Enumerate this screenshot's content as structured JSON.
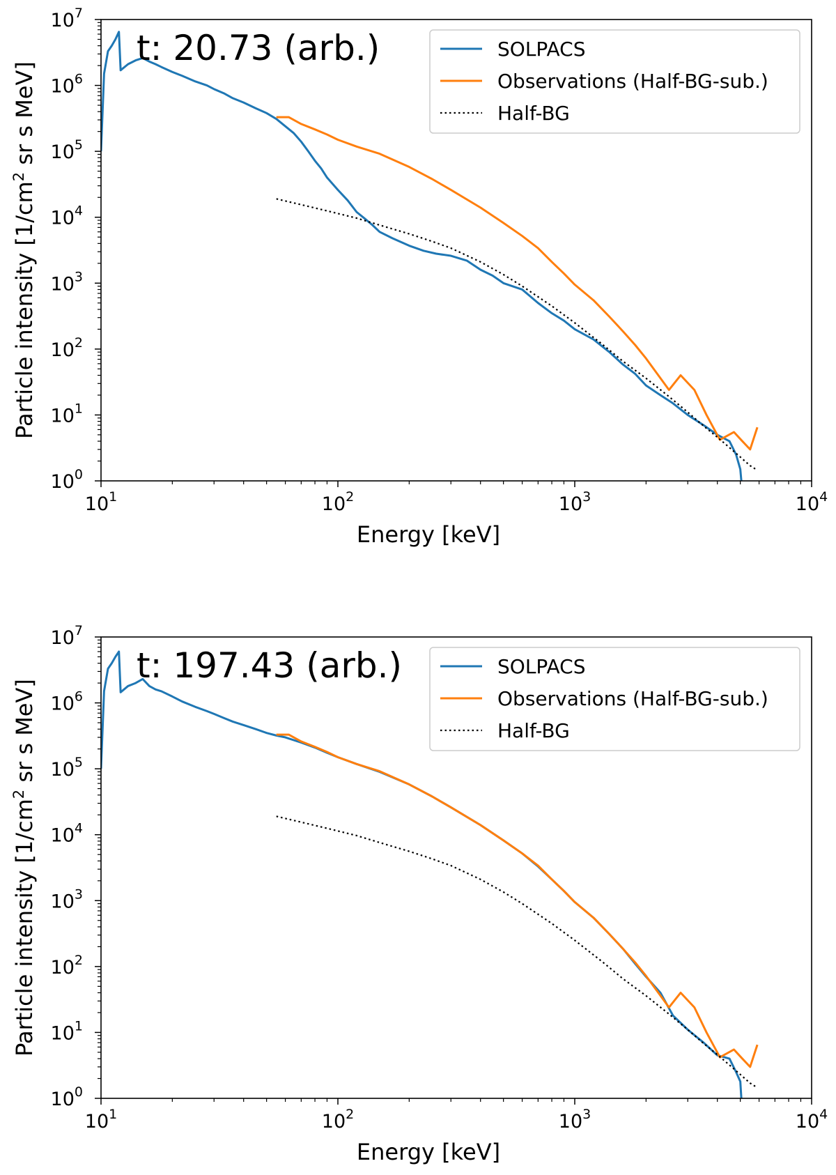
{
  "chart_data": [
    {
      "type": "line",
      "annotation": "t: 20.73 (arb.)",
      "xlabel": "Energy [keV]",
      "ylabel_pre": "Particle intensity [1/cm",
      "ylabel_sup": "2",
      "ylabel_post": " sr s MeV]",
      "xscale": "log",
      "yscale": "log",
      "xlim": [
        10,
        10000
      ],
      "ylim": [
        1,
        10000000
      ],
      "x_ticks": [
        {
          "base": "10",
          "exp": "1"
        },
        {
          "base": "10",
          "exp": "2"
        },
        {
          "base": "10",
          "exp": "3"
        },
        {
          "base": "10",
          "exp": "4"
        }
      ],
      "y_ticks": [
        {
          "base": "10",
          "exp": "0"
        },
        {
          "base": "10",
          "exp": "1"
        },
        {
          "base": "10",
          "exp": "2"
        },
        {
          "base": "10",
          "exp": "3"
        },
        {
          "base": "10",
          "exp": "4"
        },
        {
          "base": "10",
          "exp": "5"
        },
        {
          "base": "10",
          "exp": "6"
        },
        {
          "base": "10",
          "exp": "7"
        }
      ],
      "legend_position": "upper-right",
      "series": [
        {
          "name": "SOLPACS",
          "color": "#1f77b4",
          "style": "solid",
          "x": [
            10,
            10.3,
            10.7,
            11.1,
            11.5,
            11.9,
            12.1,
            13,
            14,
            15,
            16,
            17,
            18,
            20,
            22,
            25,
            28,
            30,
            33,
            36,
            40,
            45,
            50,
            55,
            60,
            65,
            70,
            75,
            80,
            85,
            90,
            100,
            110,
            120,
            130,
            140,
            150,
            170,
            200,
            230,
            260,
            300,
            350,
            400,
            450,
            500,
            600,
            700,
            800,
            900,
            1000,
            1200,
            1400,
            1600,
            1800,
            2000,
            2300,
            2600,
            3000,
            3500,
            4000,
            4500,
            4800,
            5000,
            5050
          ],
          "y": [
            100000,
            1500000,
            3300000,
            4000000,
            5000000,
            6500000,
            1700000,
            2100000,
            2400000,
            2600000,
            2300000,
            2100000,
            1900000,
            1600000,
            1400000,
            1150000,
            1000000,
            880000,
            760000,
            640000,
            550000,
            450000,
            380000,
            310000,
            240000,
            190000,
            140000,
            100000,
            72000,
            55000,
            40000,
            26000,
            18000,
            12000,
            9500,
            7600,
            6000,
            4800,
            3700,
            3100,
            2800,
            2600,
            2200,
            1600,
            1300,
            1000,
            800,
            500,
            350,
            270,
            200,
            140,
            90,
            58,
            42,
            28,
            20,
            15,
            10,
            7,
            5,
            4,
            2.5,
            1.5,
            1
          ]
        },
        {
          "name": "Observations (Half-BG-sub.)",
          "color": "#ff7f0e",
          "style": "solid",
          "x": [
            55,
            62,
            70,
            80,
            90,
            100,
            120,
            150,
            200,
            250,
            300,
            400,
            500,
            600,
            700,
            800,
            900,
            1000,
            1200,
            1400,
            1600,
            1800,
            2000,
            2200,
            2500,
            2800,
            3200,
            3600,
            4100,
            4700,
            5100,
            5500,
            5900
          ],
          "y": [
            330000,
            330000,
            260000,
            215000,
            180000,
            150000,
            118000,
            92000,
            58000,
            38000,
            26000,
            14000,
            8200,
            5200,
            3400,
            2100,
            1400,
            950,
            550,
            310,
            185,
            115,
            72,
            45,
            24,
            40,
            24,
            10,
            4.2,
            5.5,
            4,
            3,
            6.5
          ]
        },
        {
          "name": "Half-BG",
          "color": "#000000",
          "style": "dotted",
          "x": [
            55,
            70,
            90,
            120,
            150,
            200,
            250,
            300,
            400,
            500,
            600,
            800,
            1000,
            1300,
            1600,
            2000,
            2500,
            3000,
            3500,
            4000,
            4500,
            5000,
            5500,
            5900
          ],
          "y": [
            19000,
            15500,
            12500,
            9700,
            7600,
            5600,
            4300,
            3400,
            2100,
            1350,
            900,
            450,
            250,
            120,
            65,
            36,
            19,
            11,
            6.8,
            4.6,
            3.2,
            2.3,
            1.7,
            1.45
          ]
        }
      ]
    },
    {
      "type": "line",
      "annotation": "t: 197.43 (arb.)",
      "xlabel": "Energy [keV]",
      "ylabel_pre": "Particle intensity [1/cm",
      "ylabel_sup": "2",
      "ylabel_post": " sr s MeV]",
      "xscale": "log",
      "yscale": "log",
      "xlim": [
        10,
        10000
      ],
      "ylim": [
        1,
        10000000
      ],
      "x_ticks": [
        {
          "base": "10",
          "exp": "1"
        },
        {
          "base": "10",
          "exp": "2"
        },
        {
          "base": "10",
          "exp": "3"
        },
        {
          "base": "10",
          "exp": "4"
        }
      ],
      "y_ticks": [
        {
          "base": "10",
          "exp": "0"
        },
        {
          "base": "10",
          "exp": "1"
        },
        {
          "base": "10",
          "exp": "2"
        },
        {
          "base": "10",
          "exp": "3"
        },
        {
          "base": "10",
          "exp": "4"
        },
        {
          "base": "10",
          "exp": "5"
        },
        {
          "base": "10",
          "exp": "6"
        },
        {
          "base": "10",
          "exp": "7"
        }
      ],
      "legend_position": "upper-right",
      "series": [
        {
          "name": "SOLPACS",
          "color": "#1f77b4",
          "style": "solid",
          "x": [
            10,
            10.3,
            10.7,
            11.1,
            11.5,
            11.9,
            12.1,
            13,
            14,
            15,
            16,
            17,
            18,
            20,
            22,
            25,
            28,
            30,
            33,
            36,
            40,
            45,
            50,
            55,
            60,
            70,
            80,
            90,
            100,
            120,
            150,
            200,
            250,
            300,
            400,
            500,
            600,
            700,
            800,
            900,
            1000,
            1200,
            1400,
            1600,
            1800,
            2000,
            2300,
            2600,
            3000,
            3500,
            4000,
            4500,
            4800,
            5000,
            5050
          ],
          "y": [
            100000,
            1500000,
            3300000,
            4000000,
            5000000,
            6000000,
            1450000,
            1800000,
            2000000,
            2300000,
            1800000,
            1600000,
            1500000,
            1250000,
            1050000,
            870000,
            750000,
            680000,
            590000,
            520000,
            460000,
            400000,
            350000,
            320000,
            300000,
            250000,
            210000,
            175000,
            150000,
            118000,
            90000,
            58000,
            38000,
            26000,
            14000,
            8200,
            5200,
            3300,
            2100,
            1400,
            950,
            550,
            310,
            185,
            110,
            70,
            40,
            18,
            11,
            7,
            4.5,
            4,
            2.5,
            1.8,
            1
          ]
        },
        {
          "name": "Observations (Half-BG-sub.)",
          "color": "#ff7f0e",
          "style": "solid",
          "x": [
            55,
            62,
            70,
            80,
            90,
            100,
            120,
            150,
            200,
            250,
            300,
            400,
            500,
            600,
            700,
            800,
            900,
            1000,
            1200,
            1400,
            1600,
            1800,
            2000,
            2200,
            2500,
            2800,
            3200,
            3600,
            4100,
            4700,
            5100,
            5500,
            5900
          ],
          "y": [
            330000,
            330000,
            260000,
            215000,
            180000,
            150000,
            118000,
            92000,
            58000,
            38000,
            26000,
            14000,
            8200,
            5200,
            3400,
            2100,
            1400,
            950,
            550,
            310,
            185,
            115,
            72,
            45,
            24,
            40,
            24,
            10,
            4.2,
            5.5,
            4,
            3,
            6.5
          ]
        },
        {
          "name": "Half-BG",
          "color": "#000000",
          "style": "dotted",
          "x": [
            55,
            70,
            90,
            120,
            150,
            200,
            250,
            300,
            400,
            500,
            600,
            800,
            1000,
            1300,
            1600,
            2000,
            2500,
            3000,
            3500,
            4000,
            4500,
            5000,
            5500,
            5900
          ],
          "y": [
            19000,
            15500,
            12500,
            9700,
            7600,
            5600,
            4300,
            3400,
            2100,
            1350,
            900,
            450,
            250,
            120,
            65,
            36,
            19,
            11,
            6.8,
            4.6,
            3.2,
            2.3,
            1.7,
            1.45
          ]
        }
      ]
    }
  ]
}
